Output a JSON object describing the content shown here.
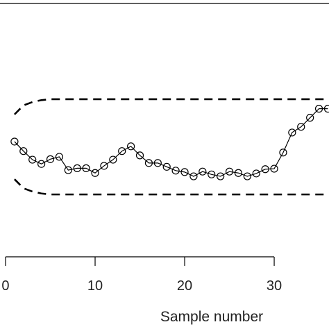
{
  "chart_data": {
    "type": "line",
    "x_label": "Sample number",
    "x": [
      1,
      2,
      3,
      4,
      5,
      6,
      7,
      8,
      9,
      10,
      11,
      12,
      13,
      14,
      15,
      16,
      17,
      18,
      19,
      20,
      21,
      22,
      23,
      24,
      25,
      26,
      27,
      28,
      29,
      30,
      31,
      32,
      33,
      34,
      35,
      36
    ],
    "series": [
      {
        "color": "#000000",
        "markers": true,
        "dashed": false,
        "values": [
          0.11,
          -0.09,
          -0.27,
          -0.36,
          -0.26,
          -0.21,
          -0.49,
          -0.45,
          -0.45,
          -0.55,
          -0.4,
          -0.27,
          -0.09,
          0.01,
          -0.18,
          -0.34,
          -0.34,
          -0.42,
          -0.5,
          -0.53,
          -0.62,
          -0.52,
          -0.58,
          -0.62,
          -0.52,
          -0.55,
          -0.62,
          -0.56,
          -0.47,
          -0.46,
          -0.12,
          0.3,
          0.42,
          0.61,
          0.8,
          0.8
        ]
      },
      {
        "color": "#000000",
        "markers": false,
        "dashed": true,
        "values": [
          0.68,
          0.87,
          0.94,
          0.98,
          1,
          1,
          1,
          1,
          1,
          1,
          1,
          1,
          1,
          1,
          1,
          1,
          1,
          1,
          1,
          1,
          1,
          1,
          1,
          1,
          1,
          1,
          1,
          1,
          1,
          1,
          1,
          1,
          1,
          1,
          1,
          1
        ]
      },
      {
        "color": "#000000",
        "markers": false,
        "dashed": true,
        "values": [
          -0.68,
          -0.87,
          -0.94,
          -0.98,
          -1,
          -1,
          -1,
          -1,
          -1,
          -1,
          -1,
          -1,
          -1,
          -1,
          -1,
          -1,
          -1,
          -1,
          -1,
          -1,
          -1,
          -1,
          -1,
          -1,
          -1,
          -1,
          -1,
          -1,
          -1,
          -1,
          -1,
          -1,
          -1,
          -1,
          -1,
          -1
        ]
      }
    ],
    "xlim": [
      -0.62,
      36.12
    ],
    "xticks": [
      0,
      10,
      20,
      30
    ],
    "ylim": [
      -2.31,
      3.01
    ]
  }
}
